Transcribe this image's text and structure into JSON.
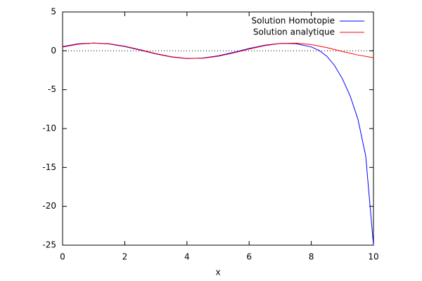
{
  "chart_data": {
    "type": "line",
    "xlabel": "x",
    "xlim": [
      0,
      10
    ],
    "xticks": [
      0,
      2,
      4,
      6,
      8,
      10
    ],
    "ylim": [
      -25,
      5
    ],
    "yticks": [
      -25,
      -20,
      -15,
      -10,
      -5,
      0,
      5
    ],
    "zero_axis": true,
    "legend": "top-right",
    "series": [
      {
        "name": "Solution Homotopie",
        "color": "#0000ff",
        "x": [
          0,
          0.5,
          1,
          1.5,
          2,
          2.5,
          3,
          3.5,
          4,
          4.5,
          5,
          5.5,
          6,
          6.5,
          7,
          7.5,
          8,
          8.25,
          8.5,
          8.75,
          9,
          9.25,
          9.5,
          9.75,
          10
        ],
        "values": [
          0.55,
          0.9,
          1.0,
          0.88,
          0.55,
          0.08,
          -0.4,
          -0.8,
          -1.0,
          -0.93,
          -0.65,
          -0.2,
          0.3,
          0.72,
          0.96,
          0.92,
          0.5,
          0.05,
          -0.7,
          -1.9,
          -3.6,
          -5.8,
          -8.8,
          -13.5,
          -25
        ]
      },
      {
        "name": "Solution analytique",
        "color": "#ff0000",
        "x": [
          0,
          0.5,
          1,
          1.5,
          2,
          2.5,
          3,
          3.5,
          4,
          4.5,
          5,
          5.5,
          6,
          6.5,
          7,
          7.5,
          8,
          8.5,
          9,
          9.5,
          10
        ],
        "values": [
          0.48,
          0.84,
          1.0,
          0.91,
          0.6,
          0.14,
          -0.35,
          -0.76,
          -0.98,
          -0.96,
          -0.71,
          -0.28,
          0.22,
          0.66,
          0.94,
          0.99,
          0.8,
          0.41,
          -0.08,
          -0.54,
          -0.88
        ]
      }
    ]
  }
}
